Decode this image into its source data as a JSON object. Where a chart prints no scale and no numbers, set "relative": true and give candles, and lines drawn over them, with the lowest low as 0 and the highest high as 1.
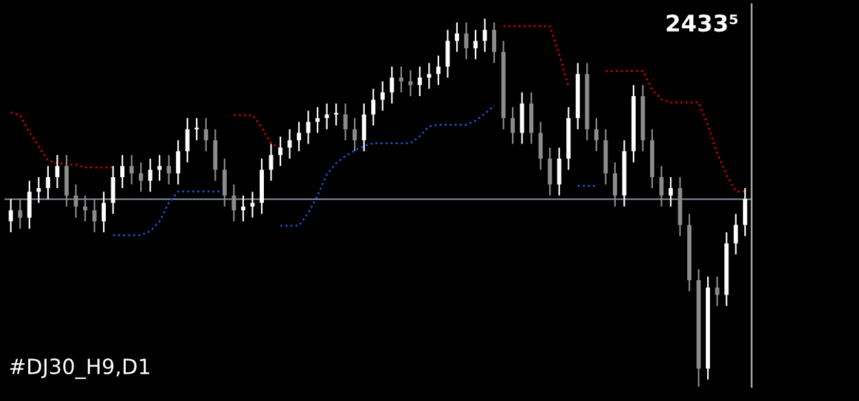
{
  "chart_data": {
    "type": "candlestick",
    "relative": true,
    "tick_labels": false,
    "categories": [
      null,
      null,
      null,
      null,
      null,
      null,
      null,
      null,
      null,
      null,
      null,
      null,
      null,
      null,
      null,
      null,
      null,
      null,
      null,
      null,
      null,
      null,
      null,
      null,
      null,
      null,
      null,
      null,
      null,
      null,
      null,
      null,
      null,
      null,
      null,
      null,
      null,
      null,
      null,
      null,
      null,
      null,
      null,
      null,
      null,
      null,
      null,
      null,
      null,
      null,
      null,
      null,
      null,
      null,
      null,
      null,
      null,
      null,
      null,
      null,
      null,
      null,
      null,
      null,
      null,
      null,
      null,
      null,
      null,
      null,
      null,
      null,
      null,
      null,
      null,
      null,
      null,
      null,
      null,
      null
    ],
    "ohlc": [
      [
        0.45,
        0.51,
        0.42,
        0.48
      ],
      [
        0.48,
        0.51,
        0.43,
        0.46
      ],
      [
        0.46,
        0.56,
        0.43,
        0.53
      ],
      [
        0.53,
        0.57,
        0.5,
        0.54
      ],
      [
        0.54,
        0.6,
        0.51,
        0.57
      ],
      [
        0.57,
        0.63,
        0.54,
        0.6
      ],
      [
        0.6,
        0.63,
        0.49,
        0.52
      ],
      [
        0.52,
        0.55,
        0.46,
        0.49
      ],
      [
        0.49,
        0.52,
        0.45,
        0.48
      ],
      [
        0.48,
        0.51,
        0.42,
        0.45
      ],
      [
        0.45,
        0.53,
        0.42,
        0.5
      ],
      [
        0.5,
        0.6,
        0.47,
        0.57
      ],
      [
        0.57,
        0.63,
        0.54,
        0.6
      ],
      [
        0.6,
        0.63,
        0.55,
        0.58
      ],
      [
        0.58,
        0.61,
        0.53,
        0.56
      ],
      [
        0.56,
        0.62,
        0.53,
        0.59
      ],
      [
        0.59,
        0.63,
        0.56,
        0.6
      ],
      [
        0.6,
        0.63,
        0.55,
        0.58
      ],
      [
        0.58,
        0.67,
        0.55,
        0.64
      ],
      [
        0.64,
        0.73,
        0.61,
        0.7
      ],
      [
        0.7,
        0.73,
        0.67,
        0.7
      ],
      [
        0.7,
        0.73,
        0.64,
        0.67
      ],
      [
        0.67,
        0.7,
        0.56,
        0.59
      ],
      [
        0.59,
        0.62,
        0.49,
        0.52
      ],
      [
        0.52,
        0.55,
        0.45,
        0.48
      ],
      [
        0.48,
        0.52,
        0.45,
        0.49
      ],
      [
        0.49,
        0.53,
        0.46,
        0.5
      ],
      [
        0.5,
        0.62,
        0.47,
        0.59
      ],
      [
        0.59,
        0.66,
        0.56,
        0.63
      ],
      [
        0.63,
        0.68,
        0.6,
        0.65
      ],
      [
        0.65,
        0.7,
        0.62,
        0.67
      ],
      [
        0.67,
        0.72,
        0.64,
        0.69
      ],
      [
        0.69,
        0.75,
        0.66,
        0.72
      ],
      [
        0.72,
        0.76,
        0.69,
        0.73
      ],
      [
        0.73,
        0.77,
        0.7,
        0.74
      ],
      [
        0.74,
        0.77,
        0.71,
        0.74
      ],
      [
        0.74,
        0.77,
        0.67,
        0.7
      ],
      [
        0.7,
        0.73,
        0.64,
        0.67
      ],
      [
        0.67,
        0.77,
        0.64,
        0.74
      ],
      [
        0.74,
        0.81,
        0.71,
        0.78
      ],
      [
        0.78,
        0.83,
        0.75,
        0.8
      ],
      [
        0.8,
        0.87,
        0.77,
        0.84
      ],
      [
        0.84,
        0.87,
        0.8,
        0.83
      ],
      [
        0.83,
        0.86,
        0.79,
        0.82
      ],
      [
        0.82,
        0.87,
        0.79,
        0.84
      ],
      [
        0.84,
        0.88,
        0.81,
        0.85
      ],
      [
        0.85,
        0.9,
        0.82,
        0.87
      ],
      [
        0.87,
        0.97,
        0.84,
        0.94
      ],
      [
        0.94,
        0.99,
        0.91,
        0.96
      ],
      [
        0.96,
        0.99,
        0.89,
        0.92
      ],
      [
        0.92,
        0.97,
        0.89,
        0.94
      ],
      [
        0.94,
        1.0,
        0.91,
        0.97
      ],
      [
        0.97,
        0.99,
        0.88,
        0.91
      ],
      [
        0.91,
        0.94,
        0.7,
        0.73
      ],
      [
        0.73,
        0.76,
        0.66,
        0.69
      ],
      [
        0.69,
        0.8,
        0.66,
        0.77
      ],
      [
        0.77,
        0.8,
        0.66,
        0.69
      ],
      [
        0.69,
        0.72,
        0.59,
        0.62
      ],
      [
        0.62,
        0.65,
        0.52,
        0.55
      ],
      [
        0.55,
        0.65,
        0.52,
        0.62
      ],
      [
        0.62,
        0.76,
        0.59,
        0.73
      ],
      [
        0.73,
        0.88,
        0.7,
        0.85
      ],
      [
        0.85,
        0.88,
        0.67,
        0.7
      ],
      [
        0.7,
        0.73,
        0.64,
        0.67
      ],
      [
        0.67,
        0.7,
        0.55,
        0.58
      ],
      [
        0.58,
        0.61,
        0.49,
        0.52
      ],
      [
        0.52,
        0.67,
        0.49,
        0.64
      ],
      [
        0.64,
        0.82,
        0.61,
        0.79
      ],
      [
        0.79,
        0.82,
        0.64,
        0.67
      ],
      [
        0.67,
        0.7,
        0.54,
        0.57
      ],
      [
        0.57,
        0.6,
        0.49,
        0.52
      ],
      [
        0.52,
        0.57,
        0.49,
        0.54
      ],
      [
        0.54,
        0.57,
        0.41,
        0.44
      ],
      [
        0.44,
        0.47,
        0.26,
        0.29
      ],
      [
        0.29,
        0.32,
        0.0,
        0.05
      ],
      [
        0.05,
        0.3,
        0.02,
        0.27
      ],
      [
        0.27,
        0.3,
        0.22,
        0.25
      ],
      [
        0.25,
        0.42,
        0.22,
        0.39
      ],
      [
        0.39,
        0.47,
        0.36,
        0.44
      ],
      [
        0.44,
        0.54,
        0.41,
        0.51
      ]
    ],
    "series": [
      {
        "type": "line",
        "line_style": "dotted",
        "color": "#d00000",
        "values": [
          0.746,
          0.738,
          0.692,
          0.654,
          0.615,
          0.608,
          0.604,
          0.604,
          0.596,
          0.596,
          0.596,
          0.596,
          null,
          null,
          null,
          null,
          null,
          null,
          null,
          null,
          null,
          null,
          null,
          null,
          0.738,
          0.738,
          0.738,
          0.704,
          0.662,
          0.646,
          null,
          null,
          null,
          null,
          null,
          null,
          null,
          null,
          null,
          null,
          null,
          null,
          null,
          null,
          null,
          null,
          null,
          null,
          null,
          null,
          null,
          null,
          null,
          0.98,
          0.98,
          0.98,
          0.98,
          0.98,
          0.98,
          0.904,
          0.815,
          null,
          null,
          null,
          0.858,
          0.858,
          0.858,
          0.858,
          0.858,
          0.808,
          0.781,
          0.773,
          0.773,
          0.773,
          0.773,
          0.712,
          0.635,
          0.577,
          0.531,
          0.531
        ]
      },
      {
        "type": "line",
        "line_style": "dotted",
        "color": "#2050d0",
        "values": [
          null,
          null,
          null,
          null,
          null,
          null,
          null,
          null,
          null,
          null,
          null,
          0.412,
          0.412,
          0.412,
          0.412,
          0.423,
          0.45,
          0.5,
          0.531,
          0.531,
          0.531,
          0.531,
          0.531,
          0.531,
          null,
          null,
          null,
          null,
          null,
          0.438,
          0.438,
          0.438,
          0.473,
          0.519,
          0.577,
          0.608,
          0.627,
          0.642,
          0.654,
          0.662,
          0.662,
          0.662,
          0.662,
          0.662,
          0.681,
          0.708,
          0.712,
          0.712,
          0.712,
          0.712,
          0.723,
          0.742,
          0.765,
          null,
          null,
          null,
          null,
          null,
          null,
          null,
          null,
          null,
          null,
          null,
          null,
          null,
          null,
          null,
          null,
          null,
          null,
          null,
          null,
          null,
          null,
          null,
          null,
          null,
          null,
          null
        ]
      },
      {
        "type": "line",
        "line_style": "dotted",
        "color": "#2050d0",
        "values": [
          null,
          null,
          null,
          null,
          null,
          null,
          null,
          null,
          null,
          null,
          null,
          null,
          null,
          null,
          null,
          null,
          null,
          null,
          null,
          null,
          null,
          null,
          null,
          null,
          null,
          null,
          null,
          null,
          null,
          null,
          null,
          null,
          null,
          null,
          null,
          null,
          null,
          null,
          null,
          null,
          null,
          null,
          null,
          null,
          null,
          null,
          null,
          null,
          null,
          null,
          null,
          null,
          null,
          null,
          null,
          null,
          null,
          null,
          null,
          null,
          null,
          0.546,
          0.546,
          0.546,
          null,
          null,
          null,
          null,
          null,
          null,
          null,
          null,
          null,
          null,
          null,
          null,
          null,
          null,
          null,
          null
        ]
      }
    ],
    "ref_lines": [
      {
        "axis": "y",
        "value": 0.51,
        "color": "#7a8699"
      }
    ],
    "annotations": [
      "2433⁵",
      "#DJ30_H9,D1"
    ]
  }
}
